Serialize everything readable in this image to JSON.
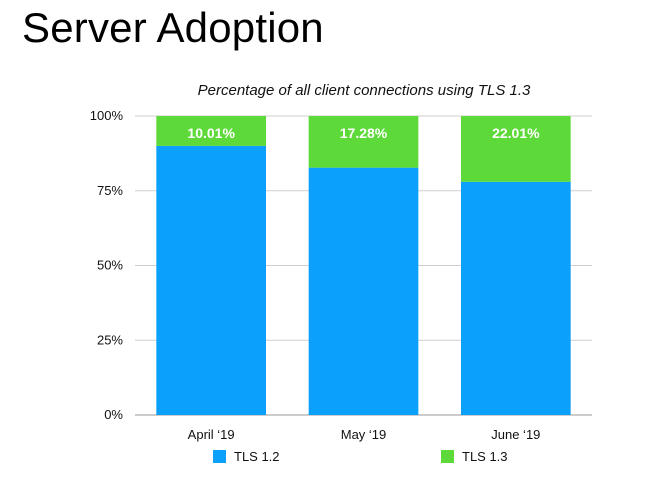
{
  "slide": {
    "title": "Server Adoption"
  },
  "chart_data": {
    "type": "bar",
    "stacked": true,
    "title": "Percentage of all client connections using TLS 1.3",
    "xlabel": "",
    "ylabel": "",
    "ylim": [
      0,
      100
    ],
    "yticks": [
      "0%",
      "25%",
      "50%",
      "75%",
      "100%"
    ],
    "ytick_values": [
      0,
      25,
      50,
      75,
      100
    ],
    "categories": [
      "April ‘19",
      "May ‘19",
      "June ‘19"
    ],
    "series": [
      {
        "name": "TLS 1.2",
        "color": "#0ba0fc",
        "values": [
          89.99,
          82.72,
          77.99
        ]
      },
      {
        "name": "TLS 1.3",
        "color": "#5ed93a",
        "values": [
          10.01,
          17.28,
          22.01
        ],
        "labels": [
          "10.01%",
          "17.28%",
          "22.01%"
        ]
      }
    ],
    "grid": true,
    "legend": "bottom"
  }
}
